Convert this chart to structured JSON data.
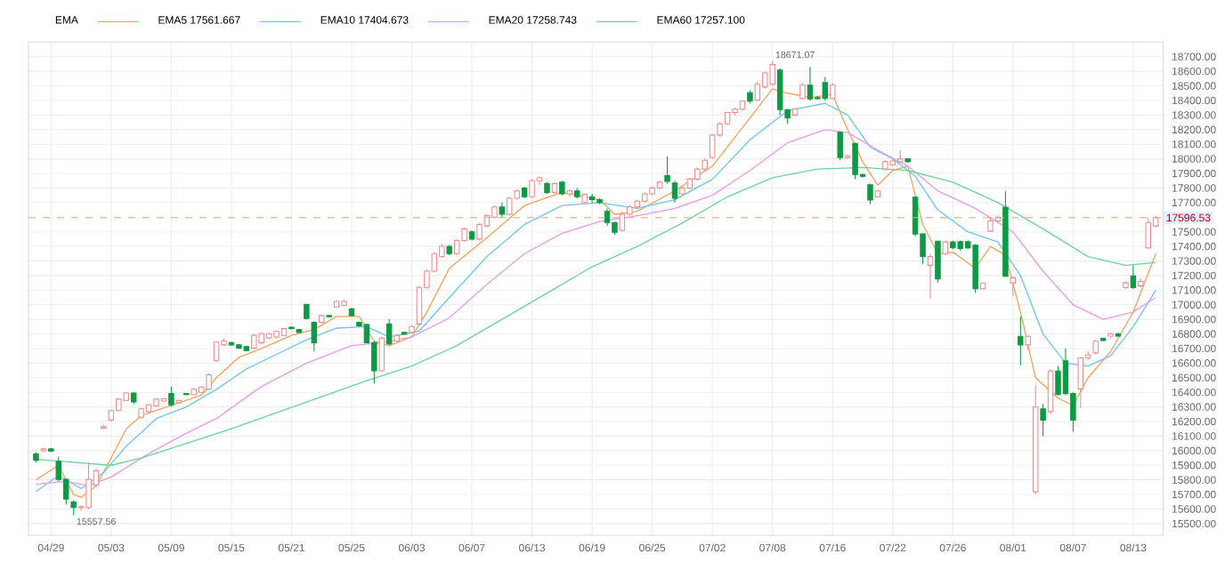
{
  "chart_data": {
    "type": "candlestick",
    "legend_title": "EMA",
    "legend": "top left",
    "grid": true,
    "categories": [
      null,
      null,
      "04/29",
      null,
      null,
      null,
      null,
      null,
      null,
      null,
      "05/03",
      null,
      null,
      null,
      null,
      null,
      null,
      null,
      "05/09",
      null,
      null,
      null,
      null,
      null,
      null,
      null,
      "05/15",
      null,
      null,
      null,
      null,
      null,
      null,
      null,
      "05/21",
      null,
      null,
      null,
      null,
      null,
      null,
      null,
      "05/25",
      null,
      null,
      null,
      null,
      null,
      null,
      null,
      "06/03",
      null,
      null,
      null,
      null,
      null,
      null,
      null,
      "06/07",
      null,
      null,
      null,
      null,
      null,
      null,
      null,
      "06/13",
      null,
      null,
      null,
      null,
      null,
      null,
      null,
      "06/19",
      null,
      null,
      null,
      null,
      null,
      null,
      null,
      "06/25",
      null,
      null,
      null,
      null,
      null,
      null,
      null,
      "07/02",
      null,
      null,
      null,
      null,
      null,
      null,
      null,
      "07/08",
      null,
      null,
      null,
      null,
      null,
      null,
      null,
      "07/16",
      null,
      null,
      null,
      null,
      null,
      null,
      null,
      "07/22",
      null,
      null,
      null,
      null,
      null,
      null,
      null,
      "07/26",
      null,
      null,
      null,
      null,
      null,
      null,
      null,
      "08/01",
      null,
      null,
      null,
      null,
      null,
      null,
      null,
      "08/07",
      null,
      null,
      null,
      null,
      null,
      null,
      null,
      "08/13",
      null,
      null,
      null
    ],
    "colors": [
      "#0e9a45",
      "#f08c8c",
      "#0e9a45",
      "#0e9a45",
      "#0e9a45",
      "#0e9a45",
      "#f08c8c",
      "#f08c8c",
      "#f08c8c",
      "#f08c8c",
      "#f08c8c",
      "#f08c8c",
      "#f08c8c",
      "#0e9a45",
      "#f08c8c",
      "#f08c8c",
      "#f08c8c",
      "#f08c8c",
      "#0e9a45",
      "#f08c8c",
      "#0e9a45",
      "#f08c8c",
      "#f08c8c",
      "#f08c8c",
      "#f08c8c",
      "#f08c8c",
      "#0e9a45",
      "#0e9a45",
      "#0e9a45",
      "#f08c8c",
      "#f08c8c",
      "#f08c8c",
      "#f08c8c",
      "#f08c8c",
      "#0e9a45",
      "#0e9a45",
      "#0e9a45",
      "#0e9a45",
      "#f08c8c",
      "#0e9a45",
      "#f08c8c",
      "#f08c8c",
      "#0e9a45",
      "#0e9a45",
      "#0e9a45",
      "#0e9a45",
      "#f08c8c",
      "#0e9a45",
      "#f08c8c",
      "#0e9a45",
      "#f08c8c",
      "#f08c8c",
      "#f08c8c",
      "#f08c8c",
      "#f08c8c",
      "#0e9a45",
      "#f08c8c",
      "#f08c8c",
      "#0e9a45",
      "#f08c8c",
      "#f08c8c",
      "#f08c8c",
      "#0e9a45",
      "#f08c8c",
      "#f08c8c",
      "#0e9a45",
      "#f08c8c",
      "#f08c8c",
      "#0e9a45",
      "#f08c8c",
      "#0e9a45",
      "#f08c8c",
      "#0e9a45",
      "#f08c8c",
      "#0e9a45",
      "#0e9a45",
      "#0e9a45",
      "#0e9a45",
      "#f08c8c",
      "#f08c8c",
      "#f08c8c",
      "#f08c8c",
      "#f08c8c",
      "#f08c8c",
      "#0e9a45",
      "#0e9a45",
      "#f08c8c",
      "#f08c8c",
      "#f08c8c",
      "#f08c8c",
      "#f08c8c",
      "#f08c8c",
      "#f08c8c",
      "#f08c8c",
      "#f08c8c",
      "#0e9a45",
      "#f08c8c",
      "#f08c8c",
      "#f08c8c",
      "#0e9a45",
      "#0e9a45",
      "#f08c8c",
      "#f08c8c",
      "#0e9a45",
      "#0e9a45",
      "#0e9a45",
      "#f08c8c",
      "#0e9a45",
      "#f08c8c",
      "#0e9a45",
      "#0e9a45",
      "#0e9a45",
      "#f08c8c",
      "#f08c8c",
      "#f08c8c",
      "#f08c8c",
      "#0e9a45",
      "#0e9a45",
      "#0e9a45",
      "#f08c8c",
      "#0e9a45",
      "#f08c8c",
      "#0e9a45",
      "#0e9a45",
      "#0e9a45",
      "#0e9a45",
      "#f08c8c",
      "#f08c8c",
      "#f08c8c",
      "#0e9a45",
      "#f08c8c",
      "#0e9a45",
      "#f08c8c",
      "#f08c8c",
      "#0e9a45",
      "#f08c8c",
      "#0e9a45",
      "#0e9a45",
      "#0e9a45",
      "#f08c8c",
      "#f08c8c",
      "#f08c8c",
      "#0e9a45",
      "#f08c8c",
      "#0e9a45",
      "#f08c8c",
      "#0e9a45",
      "#f08c8c",
      "#f08c8c",
      "#f08c8c"
    ],
    "ohlc": [
      [
        15977,
        15990,
        15920,
        15935
      ],
      [
        15999,
        16020,
        15990,
        16012
      ],
      [
        16012,
        16018,
        15990,
        15997
      ],
      [
        15927,
        15960,
        15790,
        15803
      ],
      [
        15803,
        15810,
        15630,
        15668
      ],
      [
        15649,
        15660,
        15557.56,
        15610
      ],
      [
        15610,
        15625,
        15590,
        15615
      ],
      [
        15610,
        15920,
        15600,
        15803
      ],
      [
        15765,
        15880,
        15750,
        15862
      ],
      [
        16155,
        16175,
        16150,
        16165
      ],
      [
        16210,
        16280,
        16200,
        16275
      ],
      [
        16275,
        16360,
        16270,
        16353
      ],
      [
        16345,
        16400,
        16340,
        16395
      ],
      [
        16395,
        16400,
        16320,
        16334
      ],
      [
        16229,
        16290,
        16220,
        16287
      ],
      [
        16268,
        16320,
        16260,
        16314
      ],
      [
        16307,
        16360,
        16300,
        16353
      ],
      [
        16340,
        16360,
        16330,
        16355
      ],
      [
        16392,
        16440,
        16300,
        16314
      ],
      [
        16330,
        16350,
        16320,
        16345
      ],
      [
        16392,
        16395,
        16380,
        16384
      ],
      [
        16384,
        16430,
        16380,
        16422
      ],
      [
        16400,
        16440,
        16395,
        16436
      ],
      [
        16422,
        16530,
        16415,
        16520
      ],
      [
        16616,
        16750,
        16610,
        16744
      ],
      [
        16725,
        16770,
        16720,
        16752
      ],
      [
        16740,
        16745,
        16720,
        16725
      ],
      [
        16725,
        16730,
        16700,
        16702
      ],
      [
        16713,
        16720,
        16680,
        16686
      ],
      [
        16702,
        16800,
        16695,
        16790
      ],
      [
        16740,
        16810,
        16730,
        16802
      ],
      [
        16771,
        16810,
        16765,
        16802
      ],
      [
        16779,
        16825,
        16770,
        16817
      ],
      [
        16790,
        16840,
        16785,
        16836
      ],
      [
        16845,
        16850,
        16830,
        16837
      ],
      [
        16830,
        16835,
        16808,
        16810
      ],
      [
        17003,
        17005,
        16900,
        16906
      ],
      [
        16879,
        16885,
        16680,
        16740
      ],
      [
        16879,
        16930,
        16870,
        16926
      ],
      [
        16926,
        16930,
        16915,
        16918
      ],
      [
        16984,
        17030,
        16980,
        17023
      ],
      [
        16995,
        17035,
        16990,
        17023
      ],
      [
        16972,
        16980,
        16920,
        16926
      ],
      [
        16879,
        16885,
        16850,
        16856
      ],
      [
        16864,
        16870,
        16735,
        16740
      ],
      [
        16740,
        16750,
        16461,
        16547
      ],
      [
        16547,
        16780,
        16540,
        16771
      ],
      [
        16868,
        16900,
        16720,
        16732
      ],
      [
        16752,
        16800,
        16745,
        16790
      ],
      [
        16810,
        16815,
        16795,
        16798
      ],
      [
        16810,
        16860,
        16805,
        16850
      ],
      [
        16868,
        17130,
        16860,
        17119
      ],
      [
        17119,
        17240,
        17110,
        17230
      ],
      [
        17230,
        17360,
        17220,
        17350
      ],
      [
        17330,
        17420,
        17320,
        17400
      ],
      [
        17400,
        17410,
        17340,
        17350
      ],
      [
        17350,
        17450,
        17340,
        17440
      ],
      [
        17440,
        17530,
        17430,
        17520
      ],
      [
        17500,
        17510,
        17440,
        17450
      ],
      [
        17450,
        17560,
        17440,
        17550
      ],
      [
        17540,
        17620,
        17530,
        17610
      ],
      [
        17600,
        17680,
        17590,
        17670
      ],
      [
        17670,
        17700,
        17600,
        17620
      ],
      [
        17620,
        17740,
        17610,
        17730
      ],
      [
        17730,
        17790,
        17720,
        17780
      ],
      [
        17800,
        17810,
        17730,
        17740
      ],
      [
        17740,
        17860,
        17730,
        17850
      ],
      [
        17850,
        17880,
        17820,
        17870
      ],
      [
        17830,
        17840,
        17760,
        17770
      ],
      [
        17770,
        17840,
        17760,
        17830
      ],
      [
        17840,
        17850,
        17750,
        17760
      ],
      [
        17760,
        17790,
        17740,
        17780
      ],
      [
        17780,
        17800,
        17730,
        17740
      ],
      [
        17700,
        17760,
        17690,
        17756
      ],
      [
        17740,
        17760,
        17700,
        17720
      ],
      [
        17720,
        17730,
        17690,
        17700
      ],
      [
        17640,
        17660,
        17540,
        17563
      ],
      [
        17563,
        17570,
        17480,
        17497
      ],
      [
        17510,
        17640,
        17500,
        17620
      ],
      [
        17620,
        17680,
        17610,
        17670
      ],
      [
        17670,
        17720,
        17660,
        17710
      ],
      [
        17710,
        17770,
        17700,
        17760
      ],
      [
        17760,
        17810,
        17750,
        17800
      ],
      [
        17800,
        17850,
        17790,
        17840
      ],
      [
        17884,
        18016,
        17830,
        17845
      ],
      [
        17834,
        17850,
        17700,
        17729
      ],
      [
        17760,
        17810,
        17750,
        17800
      ],
      [
        17800,
        17870,
        17790,
        17860
      ],
      [
        17860,
        17940,
        17850,
        17930
      ],
      [
        17930,
        18000,
        17920,
        17990
      ],
      [
        18010,
        18170,
        18000,
        18163
      ],
      [
        18163,
        18250,
        18150,
        18240
      ],
      [
        18240,
        18320,
        18230,
        18317
      ],
      [
        18317,
        18350,
        18300,
        18340
      ],
      [
        18340,
        18400,
        18330,
        18395
      ],
      [
        18453,
        18470,
        18380,
        18395
      ],
      [
        18403,
        18530,
        18395,
        18511
      ],
      [
        18492,
        18600,
        18480,
        18589
      ],
      [
        18511,
        18671.07,
        18500,
        18646
      ],
      [
        18608,
        18620,
        18300,
        18337
      ],
      [
        18337,
        18340,
        18240,
        18279
      ],
      [
        18300,
        18350,
        18290,
        18340
      ],
      [
        18414,
        18520,
        18405,
        18505
      ],
      [
        18505,
        18630,
        18400,
        18410
      ],
      [
        18420,
        18430,
        18405,
        18412
      ],
      [
        18523,
        18560,
        18400,
        18414
      ],
      [
        18414,
        18520,
        18410,
        18505
      ],
      [
        18182,
        18190,
        17990,
        18008
      ],
      [
        18008,
        18030,
        18000,
        18020
      ],
      [
        18105,
        18110,
        17860,
        17892
      ],
      [
        17892,
        17900,
        17870,
        17880
      ],
      [
        17822,
        17830,
        17690,
        17718
      ],
      [
        17740,
        17790,
        17735,
        17780
      ],
      [
        17930,
        17990,
        17920,
        17980
      ],
      [
        17960,
        17990,
        17950,
        17985
      ],
      [
        17980,
        18060,
        17970,
        18000
      ],
      [
        18000,
        18005,
        17975,
        17980
      ],
      [
        17737,
        17745,
        17470,
        17485
      ],
      [
        17485,
        17490,
        17280,
        17331
      ],
      [
        17270,
        17350,
        17042,
        17330
      ],
      [
        17435,
        17440,
        17150,
        17176
      ],
      [
        17350,
        17440,
        17340,
        17430
      ],
      [
        17430,
        17440,
        17380,
        17390
      ],
      [
        17432,
        17440,
        17370,
        17385
      ],
      [
        17432,
        17440,
        17380,
        17390
      ],
      [
        17408,
        17415,
        17080,
        17110
      ],
      [
        17110,
        17150,
        17105,
        17149
      ],
      [
        17505,
        17600,
        17500,
        17574
      ],
      [
        17574,
        17610,
        17560,
        17600
      ],
      [
        17668,
        17776,
        17190,
        17195
      ],
      [
        17150,
        17195,
        17061,
        17185
      ],
      [
        16783,
        16920,
        16585,
        16725
      ],
      [
        16725,
        16790,
        16690,
        16783
      ],
      [
        15718,
        16450,
        15700,
        16299
      ],
      [
        16287,
        16320,
        16100,
        16210
      ],
      [
        16268,
        16560,
        16250,
        16546
      ],
      [
        16546,
        16580,
        16380,
        16384
      ],
      [
        16616,
        16700,
        16380,
        16392
      ],
      [
        16392,
        16400,
        16130,
        16210
      ],
      [
        16423,
        16640,
        16290,
        16636
      ],
      [
        16636,
        16680,
        16620,
        16655
      ],
      [
        16670,
        16760,
        16660,
        16750
      ],
      [
        16770,
        16775,
        16750,
        16755
      ],
      [
        16785,
        16810,
        16770,
        16800
      ],
      [
        16800,
        16810,
        16780,
        16785
      ],
      [
        17117,
        17160,
        17110,
        17150
      ],
      [
        17198,
        17270,
        17110,
        17117
      ],
      [
        17130,
        17180,
        17120,
        17160
      ],
      [
        17390,
        17600,
        17380,
        17564
      ],
      [
        17540,
        17610,
        17530,
        17596.53
      ]
    ],
    "series": [
      {
        "name": "EMA5 17561.667",
        "type": "line",
        "color": "#f7a35c",
        "values": [
          15800,
          null,
          null,
          15900,
          null,
          15700,
          15680,
          null,
          15760,
          null,
          15950,
          null,
          16150,
          null,
          16240,
          null,
          null,
          null,
          16310,
          null,
          null,
          null,
          16380,
          null,
          16500,
          null,
          null,
          16640,
          null,
          null,
          16700,
          null,
          null,
          null,
          16790,
          null,
          null,
          16830,
          null,
          null,
          16920,
          null,
          null,
          16920,
          null,
          16750,
          null,
          16720,
          null,
          null,
          16780,
          null,
          16950,
          null,
          null,
          17250,
          null,
          null,
          null,
          null,
          17460,
          null,
          null,
          null,
          null,
          17680,
          null,
          null,
          null,
          null,
          17770,
          null,
          null,
          null,
          null,
          17720,
          null,
          17620,
          null,
          null,
          17640,
          null,
          null,
          null,
          null,
          17780,
          null,
          null,
          null,
          null,
          17950,
          null,
          null,
          null,
          null,
          18280,
          null,
          null,
          18480,
          null,
          18450,
          null,
          null,
          18420,
          null,
          null,
          18440,
          null,
          18200,
          null,
          17980,
          null,
          17820,
          null,
          17920,
          null,
          17950,
          null,
          17550,
          null,
          17350,
          null,
          17360,
          null,
          null,
          17250,
          null,
          17400,
          null,
          17340,
          null,
          16950,
          null,
          16500,
          null,
          null,
          16360,
          null,
          16310,
          null,
          16500,
          null,
          null,
          16680,
          null,
          null,
          16950,
          null,
          null,
          17350
        ]
      },
      {
        "name": "EMA10 17404.673",
        "type": "line",
        "color": "#6ec6f0",
        "values": [
          15720,
          null,
          null,
          15830,
          null,
          null,
          15740,
          null,
          null,
          15850,
          null,
          null,
          16030,
          null,
          null,
          null,
          16220,
          null,
          null,
          null,
          16300,
          null,
          null,
          null,
          16420,
          null,
          null,
          null,
          16560,
          null,
          null,
          null,
          16660,
          null,
          null,
          null,
          16760,
          null,
          null,
          null,
          16840,
          null,
          null,
          null,
          16850,
          null,
          null,
          16780,
          null,
          null,
          null,
          16820,
          null,
          null,
          null,
          17050,
          null,
          null,
          null,
          null,
          17330,
          null,
          null,
          null,
          null,
          17550,
          null,
          null,
          null,
          null,
          17680,
          null,
          null,
          null,
          null,
          17700,
          null,
          null,
          null,
          null,
          17660,
          null,
          null,
          null,
          null,
          17720,
          null,
          null,
          null,
          null,
          17860,
          null,
          null,
          null,
          null,
          18130,
          null,
          null,
          null,
          null,
          18330,
          null,
          null,
          null,
          null,
          18380,
          null,
          null,
          18300,
          null,
          null,
          18080,
          null,
          null,
          18000,
          null,
          null,
          17880,
          null,
          null,
          17650,
          null,
          null,
          null,
          17500,
          null,
          null,
          null,
          17430,
          null,
          null,
          17200,
          null,
          null,
          16800,
          null,
          null,
          16600,
          null,
          null,
          16580,
          null,
          null,
          16650,
          null,
          null,
          16850,
          null,
          null,
          17100
        ]
      },
      {
        "name": "EMA20 17258.743",
        "type": "line",
        "color": "#e89ae8",
        "values": [
          15770,
          null,
          null,
          null,
          15790,
          null,
          null,
          15760,
          null,
          null,
          15820,
          null,
          null,
          null,
          null,
          15980,
          null,
          null,
          null,
          null,
          16120,
          null,
          null,
          null,
          16220,
          null,
          null,
          null,
          null,
          null,
          16440,
          null,
          null,
          null,
          null,
          null,
          16600,
          null,
          null,
          null,
          null,
          null,
          16720,
          null,
          null,
          null,
          16740,
          null,
          null,
          null,
          16780,
          null,
          null,
          null,
          null,
          16910,
          null,
          null,
          null,
          null,
          17140,
          null,
          null,
          null,
          null,
          17350,
          null,
          null,
          null,
          null,
          17490,
          null,
          null,
          null,
          null,
          17570,
          null,
          null,
          null,
          null,
          17610,
          null,
          null,
          null,
          null,
          17660,
          null,
          null,
          null,
          null,
          17750,
          null,
          null,
          null,
          null,
          17920,
          null,
          null,
          null,
          null,
          18110,
          null,
          null,
          null,
          null,
          18200,
          null,
          null,
          18180,
          null,
          null,
          null,
          18060,
          null,
          null,
          null,
          17950,
          null,
          null,
          null,
          17780,
          null,
          null,
          null,
          null,
          17660,
          null,
          null,
          null,
          null,
          17500,
          null,
          null,
          null,
          17230,
          null,
          null,
          null,
          17000,
          null,
          null,
          null,
          16900,
          null,
          null,
          null,
          16950,
          null,
          null,
          17050
        ]
      },
      {
        "name": "EMA60 17257.100",
        "type": "line",
        "color": "#6cd49a",
        "values": [
          15940,
          null,
          null,
          null,
          null,
          15920,
          null,
          null,
          null,
          null,
          15900,
          null,
          null,
          null,
          15950,
          null,
          null,
          null,
          null,
          null,
          16050,
          null,
          null,
          null,
          null,
          null,
          16150,
          null,
          null,
          null,
          null,
          null,
          16260,
          null,
          null,
          null,
          null,
          null,
          16370,
          null,
          null,
          null,
          null,
          null,
          16480,
          null,
          null,
          null,
          null,
          null,
          16580,
          null,
          null,
          null,
          null,
          null,
          16720,
          null,
          null,
          null,
          null,
          null,
          16900,
          null,
          null,
          null,
          null,
          null,
          17080,
          null,
          null,
          null,
          null,
          null,
          17260,
          null,
          null,
          null,
          null,
          null,
          17400,
          null,
          null,
          null,
          null,
          null,
          17560,
          null,
          null,
          null,
          null,
          null,
          17740,
          null,
          null,
          null,
          null,
          null,
          17870,
          null,
          null,
          null,
          null,
          null,
          17930,
          null,
          null,
          null,
          null,
          null,
          17940,
          null,
          null,
          null,
          null,
          null,
          17920,
          null,
          null,
          null,
          null,
          null,
          17840,
          null,
          null,
          null,
          null,
          null,
          17700,
          null,
          null,
          null,
          null,
          null,
          17520,
          null,
          null,
          null,
          null,
          null,
          17330,
          null,
          null,
          null,
          null,
          17270,
          null,
          null,
          null,
          17290
        ]
      }
    ],
    "ylim": [
      15420,
      18800
    ],
    "yticks": [
      {
        "value": 15500,
        "label": "15500.00"
      },
      {
        "value": 15600,
        "label": "15600.00"
      },
      {
        "value": 15700,
        "label": "15700.00"
      },
      {
        "value": 15800,
        "label": "15800.00"
      },
      {
        "value": 15900,
        "label": "15900.00"
      },
      {
        "value": 16000,
        "label": "16000.00"
      },
      {
        "value": 16100,
        "label": "16100.00"
      },
      {
        "value": 16200,
        "label": "16200.00"
      },
      {
        "value": 16300,
        "label": "16300.00"
      },
      {
        "value": 16400,
        "label": "16400.00"
      },
      {
        "value": 16500,
        "label": "16500.00"
      },
      {
        "value": 16600,
        "label": "16600.00"
      },
      {
        "value": 16700,
        "label": "16700.00"
      },
      {
        "value": 16800,
        "label": "16800.00"
      },
      {
        "value": 16900,
        "label": "16900.00"
      },
      {
        "value": 17000,
        "label": "17000.00"
      },
      {
        "value": 17100,
        "label": "17100.00"
      },
      {
        "value": 17200,
        "label": "17200.00"
      },
      {
        "value": 17300,
        "label": "17300.00"
      },
      {
        "value": 17400,
        "label": "17400.00"
      },
      {
        "value": 17500,
        "label": "17500.00"
      },
      {
        "value": 17700,
        "label": "17700.00"
      },
      {
        "value": 17800,
        "label": "17800.00"
      },
      {
        "value": 17900,
        "label": "17900.00"
      },
      {
        "value": 18000,
        "label": "18000.00"
      },
      {
        "value": 18100,
        "label": "18100.00"
      },
      {
        "value": 18200,
        "label": "18200.00"
      },
      {
        "value": 18300,
        "label": "18300.00"
      },
      {
        "value": 18400,
        "label": "18400.00"
      },
      {
        "value": 18500,
        "label": "18500.00"
      },
      {
        "value": 18600,
        "label": "18600.00"
      },
      {
        "value": 18700,
        "label": "18700.00"
      }
    ],
    "ref_lines": [
      {
        "axis": "y",
        "value": 17596.53,
        "label": "17596.53",
        "color": "#f7a35c",
        "line_style": "dashed"
      }
    ],
    "annotations": [
      "18671.07",
      "15557.56"
    ]
  }
}
